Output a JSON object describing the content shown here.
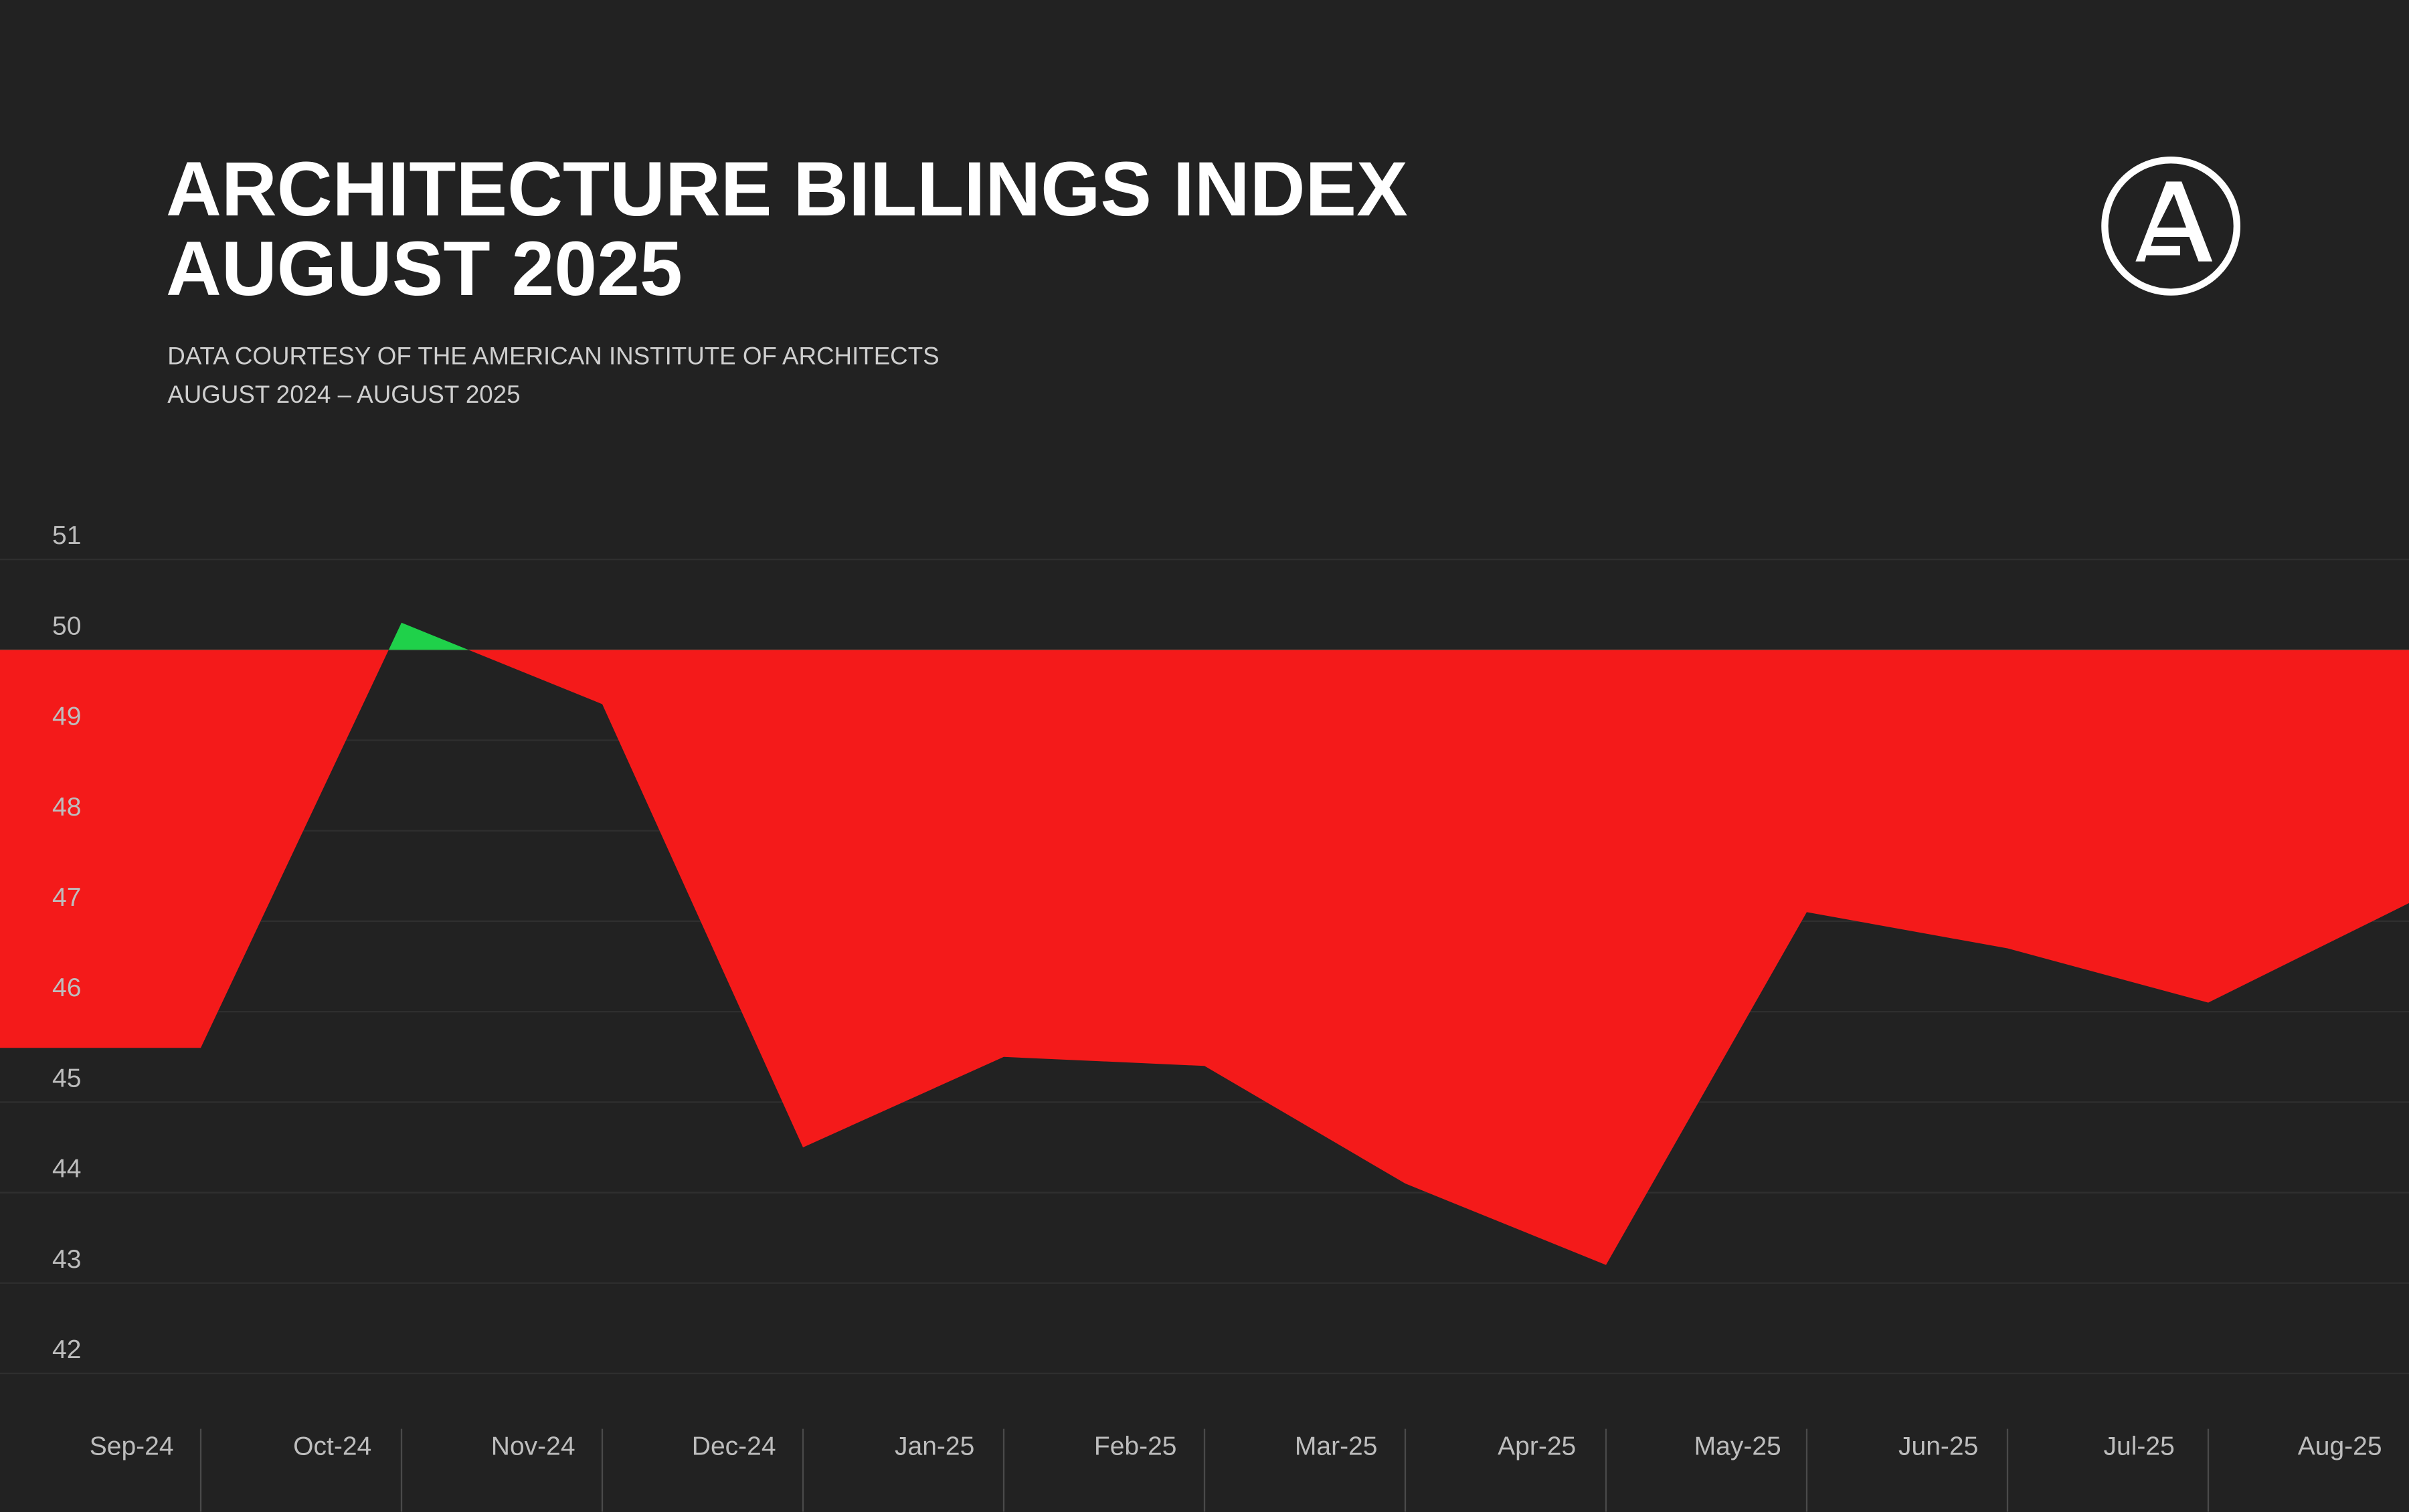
{
  "header": {
    "title_line1": "ARCHITECTURE BILLINGS INDEX",
    "title_line2": "AUGUST 2025",
    "subtitle_line1": "DATA COURTESY OF THE AMERICAN INSTITUTE OF ARCHITECTS",
    "subtitle_line2": "AUGUST 2024 – AUGUST 2025"
  },
  "chart_data": {
    "type": "area",
    "categories": [
      null,
      "Sep-24",
      "Oct-24",
      "Nov-24",
      "Dec-24",
      "Jan-25",
      "Feb-25",
      "Mar-25",
      "Apr-25",
      "May-25",
      "Jun-25",
      "Jul-25",
      "Aug-25"
    ],
    "values": [
      45.6,
      45.6,
      50.3,
      49.4,
      44.5,
      45.5,
      45.4,
      44.1,
      43.2,
      47.1,
      46.7,
      46.1,
      47.2
    ],
    "baseline": 50,
    "color_below": "#f41a1a",
    "color_above": "#1fd14a",
    "ylim": [
      42,
      51
    ],
    "yticks": [
      42,
      43,
      44,
      45,
      46,
      47,
      48,
      49,
      50,
      51
    ],
    "grid": true
  }
}
